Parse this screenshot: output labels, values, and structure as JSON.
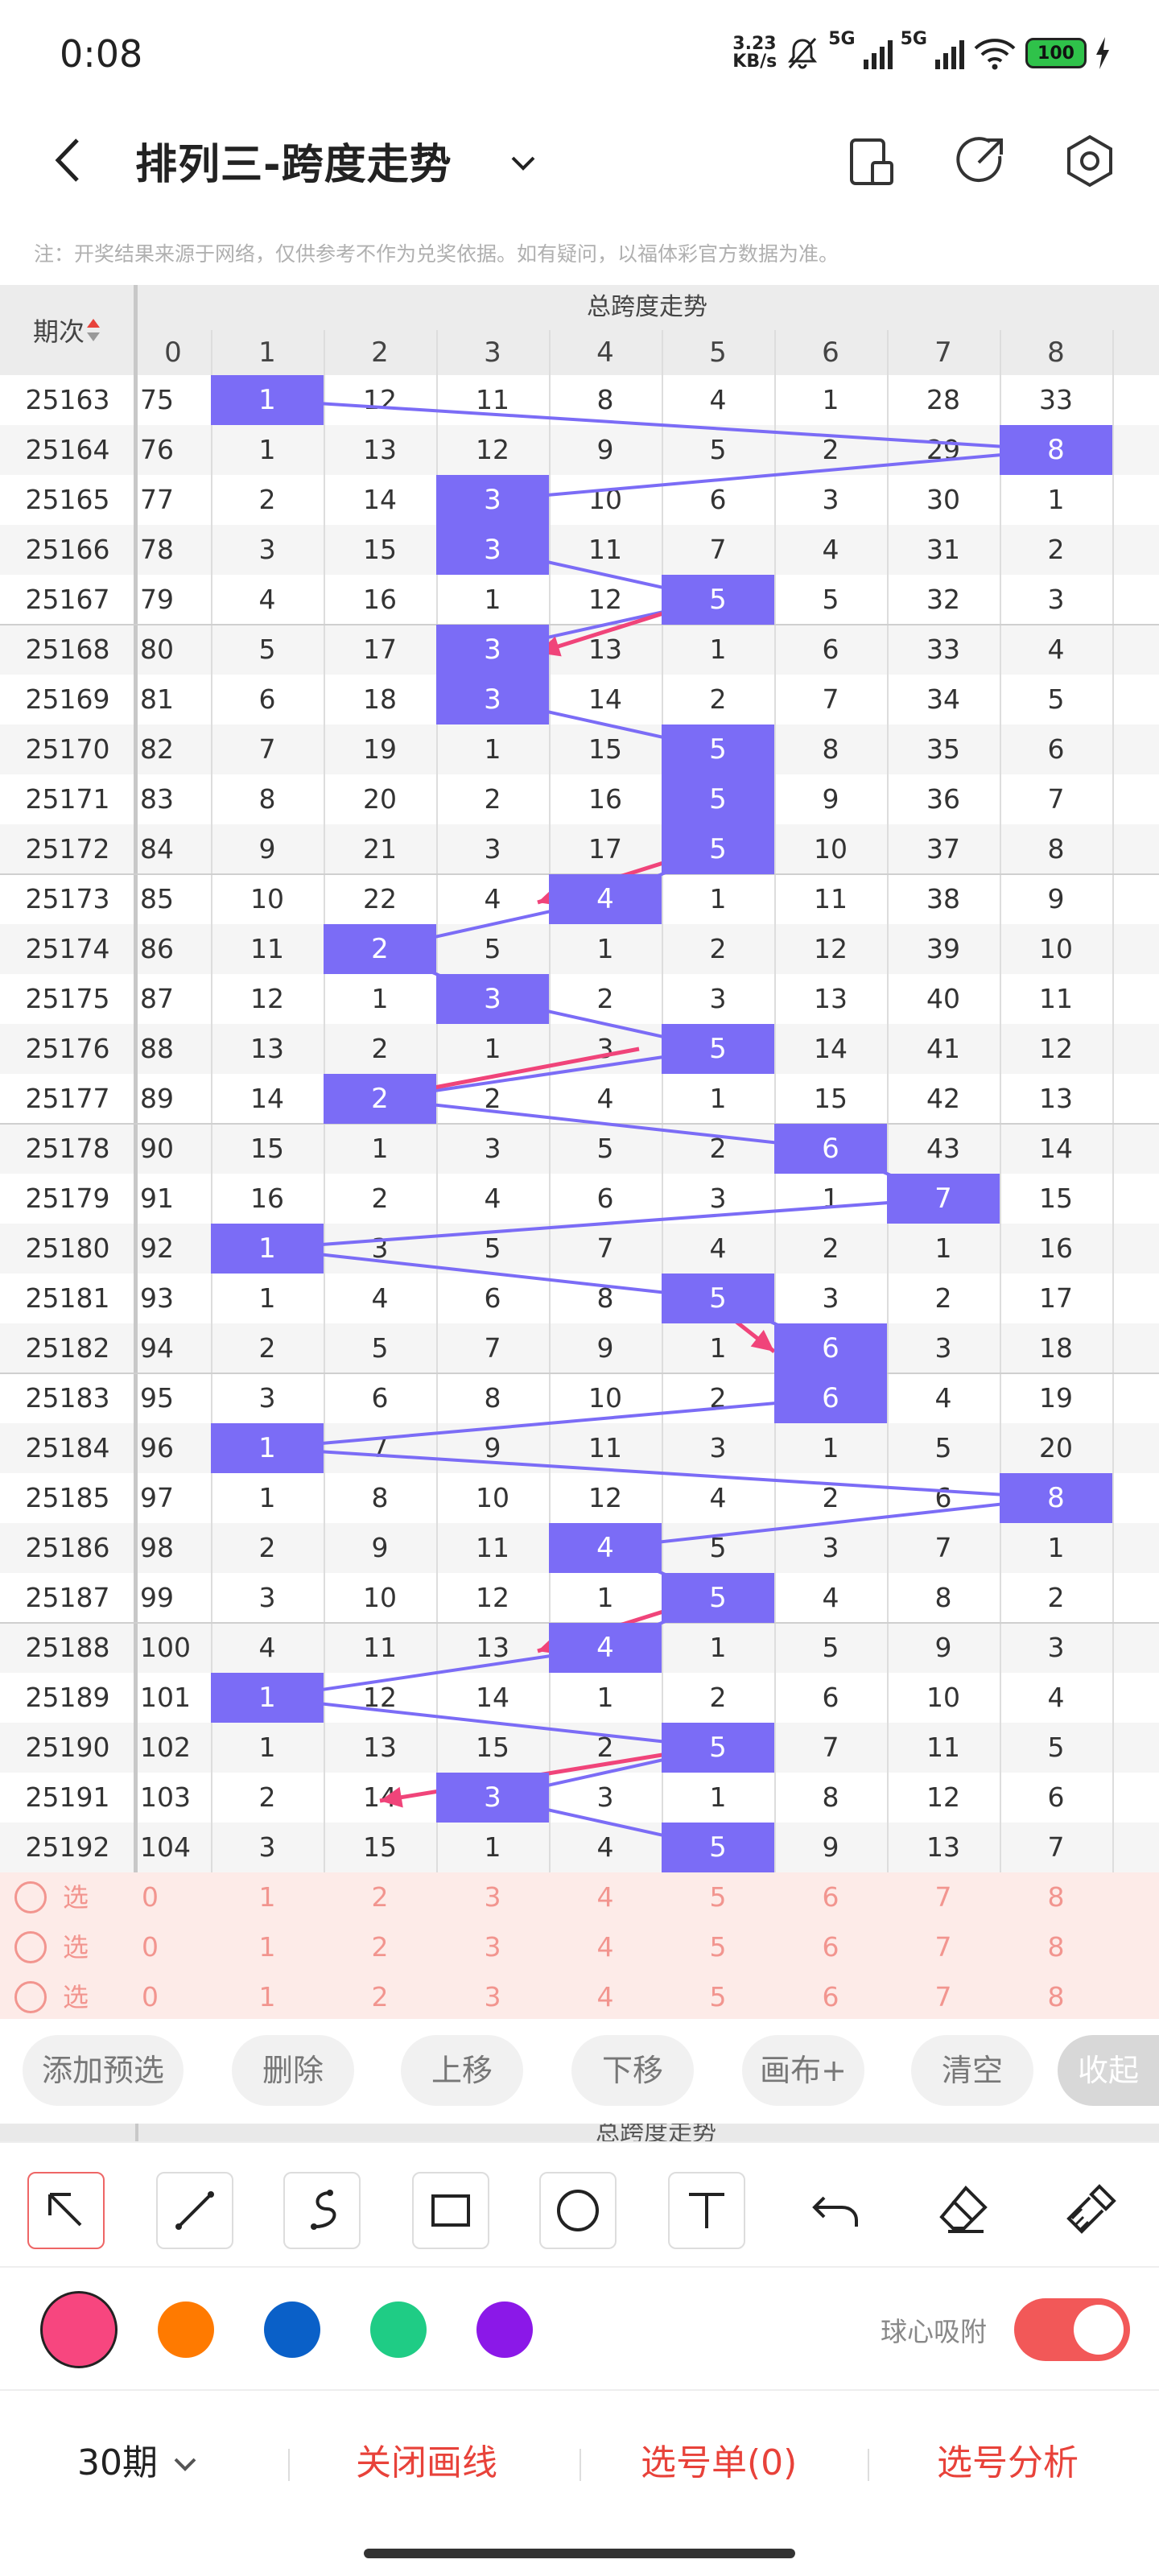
{
  "status": {
    "time": "0:08",
    "netspeed_top": "3.23",
    "netspeed_bottom": "KB/s",
    "net1": "5G",
    "net2": "5G",
    "battery": "100"
  },
  "nav": {
    "title": "排列三-跨度走势"
  },
  "notice": "注：开奖结果来源于网络，仅供参考不作为兑奖依据。如有疑问，以福体彩官方数据为准。",
  "table": {
    "period_header": "期次",
    "group_header": "总跨度走势",
    "columns": [
      "0",
      "1",
      "2",
      "3",
      "4",
      "5",
      "6",
      "7",
      "8"
    ],
    "rows": [
      {
        "period": "25163",
        "cells": [
          "75",
          "1",
          "12",
          "11",
          "8",
          "4",
          "1",
          "28",
          "33"
        ],
        "hit": 1
      },
      {
        "period": "25164",
        "cells": [
          "76",
          "1",
          "13",
          "12",
          "9",
          "5",
          "2",
          "29",
          "8"
        ],
        "hit": 8
      },
      {
        "period": "25165",
        "cells": [
          "77",
          "2",
          "14",
          "3",
          "10",
          "6",
          "3",
          "30",
          "1"
        ],
        "hit": 3
      },
      {
        "period": "25166",
        "cells": [
          "78",
          "3",
          "15",
          "3",
          "11",
          "7",
          "4",
          "31",
          "2"
        ],
        "hit": 3
      },
      {
        "period": "25167",
        "cells": [
          "79",
          "4",
          "16",
          "1",
          "12",
          "5",
          "5",
          "32",
          "3"
        ],
        "hit": 5
      },
      {
        "period": "25168",
        "cells": [
          "80",
          "5",
          "17",
          "3",
          "13",
          "1",
          "6",
          "33",
          "4"
        ],
        "hit": 3
      },
      {
        "period": "25169",
        "cells": [
          "81",
          "6",
          "18",
          "3",
          "14",
          "2",
          "7",
          "34",
          "5"
        ],
        "hit": 3
      },
      {
        "period": "25170",
        "cells": [
          "82",
          "7",
          "19",
          "1",
          "15",
          "5",
          "8",
          "35",
          "6"
        ],
        "hit": 5
      },
      {
        "period": "25171",
        "cells": [
          "83",
          "8",
          "20",
          "2",
          "16",
          "5",
          "9",
          "36",
          "7"
        ],
        "hit": 5
      },
      {
        "period": "25172",
        "cells": [
          "84",
          "9",
          "21",
          "3",
          "17",
          "5",
          "10",
          "37",
          "8"
        ],
        "hit": 5
      },
      {
        "period": "25173",
        "cells": [
          "85",
          "10",
          "22",
          "4",
          "4",
          "1",
          "11",
          "38",
          "9"
        ],
        "hit": 4
      },
      {
        "period": "25174",
        "cells": [
          "86",
          "11",
          "2",
          "5",
          "1",
          "2",
          "12",
          "39",
          "10"
        ],
        "hit": 2
      },
      {
        "period": "25175",
        "cells": [
          "87",
          "12",
          "1",
          "3",
          "2",
          "3",
          "13",
          "40",
          "11"
        ],
        "hit": 3
      },
      {
        "period": "25176",
        "cells": [
          "88",
          "13",
          "2",
          "1",
          "3",
          "5",
          "14",
          "41",
          "12"
        ],
        "hit": 5
      },
      {
        "period": "25177",
        "cells": [
          "89",
          "14",
          "2",
          "2",
          "4",
          "1",
          "15",
          "42",
          "13"
        ],
        "hit": 2
      },
      {
        "period": "25178",
        "cells": [
          "90",
          "15",
          "1",
          "3",
          "5",
          "2",
          "6",
          "43",
          "14"
        ],
        "hit": 6
      },
      {
        "period": "25179",
        "cells": [
          "91",
          "16",
          "2",
          "4",
          "6",
          "3",
          "1",
          "7",
          "15"
        ],
        "hit": 7
      },
      {
        "period": "25180",
        "cells": [
          "92",
          "1",
          "3",
          "5",
          "7",
          "4",
          "2",
          "1",
          "16"
        ],
        "hit": 1
      },
      {
        "period": "25181",
        "cells": [
          "93",
          "1",
          "4",
          "6",
          "8",
          "5",
          "3",
          "2",
          "17"
        ],
        "hit": 5
      },
      {
        "period": "25182",
        "cells": [
          "94",
          "2",
          "5",
          "7",
          "9",
          "1",
          "6",
          "3",
          "18"
        ],
        "hit": 6
      },
      {
        "period": "25183",
        "cells": [
          "95",
          "3",
          "6",
          "8",
          "10",
          "2",
          "6",
          "4",
          "19"
        ],
        "hit": 6
      },
      {
        "period": "25184",
        "cells": [
          "96",
          "1",
          "7",
          "9",
          "11",
          "3",
          "1",
          "5",
          "20"
        ],
        "hit": 1
      },
      {
        "period": "25185",
        "cells": [
          "97",
          "1",
          "8",
          "10",
          "12",
          "4",
          "2",
          "6",
          "8"
        ],
        "hit": 8
      },
      {
        "period": "25186",
        "cells": [
          "98",
          "2",
          "9",
          "11",
          "4",
          "5",
          "3",
          "7",
          "1"
        ],
        "hit": 4
      },
      {
        "period": "25187",
        "cells": [
          "99",
          "3",
          "10",
          "12",
          "1",
          "5",
          "4",
          "8",
          "2"
        ],
        "hit": 5
      },
      {
        "period": "25188",
        "cells": [
          "100",
          "4",
          "11",
          "13",
          "4",
          "1",
          "5",
          "9",
          "3"
        ],
        "hit": 4
      },
      {
        "period": "25189",
        "cells": [
          "101",
          "1",
          "12",
          "14",
          "1",
          "2",
          "6",
          "10",
          "4"
        ],
        "hit": 1
      },
      {
        "period": "25190",
        "cells": [
          "102",
          "1",
          "13",
          "15",
          "2",
          "5",
          "7",
          "11",
          "5"
        ],
        "hit": 5
      },
      {
        "period": "25191",
        "cells": [
          "103",
          "2",
          "14",
          "3",
          "3",
          "1",
          "8",
          "12",
          "6"
        ],
        "hit": 3
      },
      {
        "period": "25192",
        "cells": [
          "104",
          "3",
          "15",
          "1",
          "4",
          "5",
          "9",
          "13",
          "7"
        ],
        "hit": 5
      }
    ],
    "pick_rows": [
      {
        "label": "选号",
        "cells": [
          "0",
          "1",
          "2",
          "3",
          "4",
          "5",
          "6",
          "7",
          "8"
        ]
      },
      {
        "label": "选号",
        "cells": [
          "0",
          "1",
          "2",
          "3",
          "4",
          "5",
          "6",
          "7",
          "8"
        ]
      },
      {
        "label": "选号",
        "cells": [
          "0",
          "1",
          "2",
          "3",
          "4",
          "5",
          "6",
          "7",
          "8"
        ]
      }
    ],
    "line_color": "#7b6cf6",
    "arrow_color": "#f0447a"
  },
  "actions": [
    "添加预选",
    "删除",
    "上移",
    "下移",
    "画布+",
    "清空",
    "收起"
  ],
  "peek_header": "总跨度走势",
  "tools": [
    "arrow-tool-icon",
    "line-tool-icon",
    "curve-tool-icon",
    "rectangle-tool-icon",
    "circle-tool-icon",
    "text-tool-icon",
    "undo-icon",
    "eraser-icon",
    "clear-brush-icon"
  ],
  "colors": [
    "#f7467f",
    "#ff7a00",
    "#0a60c8",
    "#1fcc85",
    "#8b18e8"
  ],
  "snap_label": "球心吸附",
  "snap_on": true,
  "bottom": {
    "periods": "30期",
    "close_lines": "关闭画线",
    "pick_list": "选号单(0)",
    "pick_analysis": "选号分析"
  }
}
